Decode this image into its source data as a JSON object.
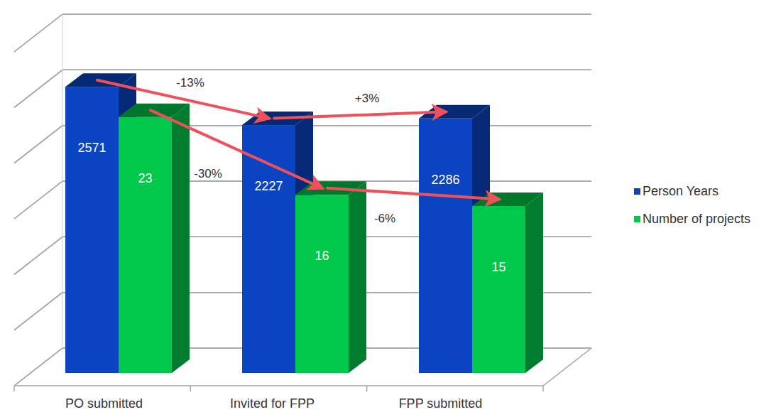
{
  "chart_data": {
    "type": "bar",
    "categories": [
      "PO submitted",
      "Invited for FPP",
      "FPP submitted"
    ],
    "series": [
      {
        "name": "Person Years",
        "color": "#0a44c2",
        "values": [
          2571,
          2227,
          2286
        ]
      },
      {
        "name": "Number of projects",
        "color": "#00c84a",
        "values": [
          23,
          16,
          15
        ],
        "axis": "y2"
      }
    ],
    "ylim": [
      0,
      3000
    ],
    "yticks": [
      0,
      500,
      1000,
      1500,
      2000,
      2500,
      3000
    ],
    "y2lim": [
      0,
      30
    ],
    "y2ticks": [
      0,
      5,
      10,
      15,
      20,
      25,
      30
    ],
    "grid": true,
    "legend": "right",
    "data_labels": true,
    "tick_labels": "x",
    "annotations": [
      {
        "text": "-13%",
        "series": 0,
        "from": 0,
        "to": 1
      },
      {
        "text": "+3%",
        "series": 0,
        "from": 1,
        "to": 2
      },
      {
        "text": "-30%",
        "series": 1,
        "from": 0,
        "to": 1
      },
      {
        "text": "-6%",
        "series": 1,
        "from": 1,
        "to": 2
      }
    ]
  }
}
